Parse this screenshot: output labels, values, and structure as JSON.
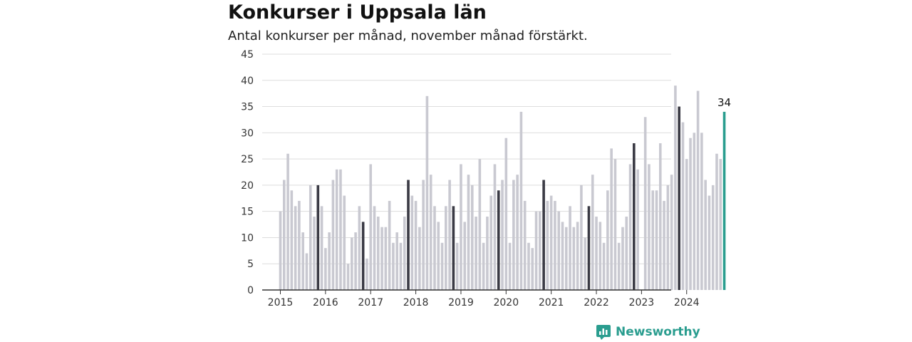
{
  "header": {
    "title": "Konkurser i Uppsala län",
    "subtitle": "Antal konkurser per månad, november månad förstärkt."
  },
  "brand": {
    "name": "Newsworthy"
  },
  "colors": {
    "base": "#c9c9d1",
    "highlight": "#3a3a44",
    "current": "#2a9d8f",
    "grid": "#dddddd",
    "axis": "#333333"
  },
  "chart_data": {
    "type": "bar",
    "title": "Konkurser i Uppsala län",
    "subtitle": "Antal konkurser per månad, november månad förstärkt.",
    "ylim": [
      0,
      45
    ],
    "yticks": [
      0,
      5,
      10,
      15,
      20,
      25,
      30,
      35,
      40,
      45
    ],
    "xticks": [
      "2015",
      "2016",
      "2017",
      "2018",
      "2019",
      "2020",
      "2021",
      "2022",
      "2023",
      "2024"
    ],
    "start": "2015-01",
    "highlight_month": "november",
    "current_label": "34",
    "values": [
      15,
      21,
      26,
      19,
      16,
      17,
      11,
      7,
      20,
      14,
      20,
      16,
      8,
      11,
      21,
      23,
      23,
      18,
      5,
      10,
      11,
      16,
      13,
      6,
      24,
      16,
      14,
      12,
      12,
      17,
      9,
      11,
      9,
      14,
      21,
      18,
      17,
      12,
      21,
      37,
      22,
      16,
      13,
      9,
      16,
      21,
      16,
      9,
      24,
      13,
      22,
      20,
      14,
      25,
      9,
      14,
      18,
      24,
      19,
      21,
      29,
      9,
      21,
      22,
      34,
      17,
      9,
      8,
      15,
      15,
      21,
      17,
      18,
      17,
      15,
      13,
      12,
      16,
      12,
      13,
      20,
      10,
      16,
      22,
      14,
      13,
      9,
      19,
      27,
      25,
      9,
      12,
      14,
      24,
      28,
      23,
      0,
      33,
      24,
      19,
      19,
      28,
      17,
      20,
      22,
      39,
      35,
      32,
      25,
      29,
      30,
      38,
      30,
      21,
      18,
      20,
      26,
      25,
      34
    ]
  }
}
